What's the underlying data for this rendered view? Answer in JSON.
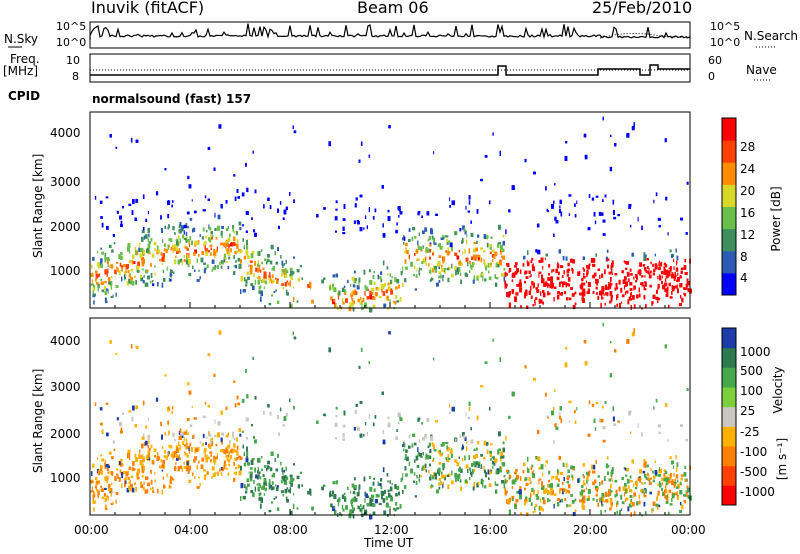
{
  "header": {
    "station": "Inuvik (fitACF)",
    "beam": "Beam 06",
    "date": "25/Feb/2010"
  },
  "small_panels": {
    "nsky_label": "N.Sky",
    "nsky_ticks": [
      "10^5",
      "10^0"
    ],
    "nsearch_label": "N.Search",
    "nsearch_ticks": [
      "10^5",
      "10^0"
    ],
    "freq_label_1": "Freq.",
    "freq_label_2": "[MHz]",
    "freq_ticks": [
      "10",
      "8"
    ],
    "nave_label": "Nave",
    "nave_ticks": [
      "60",
      "0"
    ],
    "cpid_label": "CPID",
    "cpid_text": "normalsound (fast) 157"
  },
  "chart_data": [
    {
      "type": "heatmap",
      "name": "power",
      "ylabel": "Slant Range [km]",
      "yticks": [
        "4000",
        "3000",
        "2000",
        "1000"
      ],
      "ylim": [
        180,
        4500
      ],
      "xticks": [
        "00:00",
        "04:00",
        "08:00",
        "12:00",
        "16:00",
        "20:00",
        "00:00"
      ],
      "colorbar": {
        "label": "Power [dB]",
        "ticks": [
          "28",
          "24",
          "20",
          "16",
          "12",
          "8",
          "4"
        ],
        "colors": [
          "#0000ff",
          "#2c5bb4",
          "#3e8e5e",
          "#68c04a",
          "#d8d82a",
          "#ff8c00",
          "#ff4000",
          "#ff0000"
        ]
      }
    },
    {
      "type": "heatmap",
      "name": "velocity",
      "ylabel": "Slant Range [km]",
      "yticks": [
        "4000",
        "3000",
        "2000",
        "1000"
      ],
      "ylim": [
        180,
        4500
      ],
      "xticks": [
        "00:00",
        "04:00",
        "08:00",
        "12:00",
        "16:00",
        "20:00",
        "00:00"
      ],
      "xlabel": "Time UT",
      "colorbar": {
        "label_main": "Velocity",
        "label_unit": "[m s⁻¹]",
        "ticks": [
          "1000",
          "500",
          "100",
          "25",
          "-25",
          "-100",
          "-500",
          "-1000"
        ],
        "colors": [
          "#1c3ca8",
          "#2e7a4f",
          "#46a84a",
          "#7cd03c",
          "#c8c8c0",
          "#ffb000",
          "#ff8000",
          "#ff4000",
          "#ff0000"
        ]
      }
    }
  ]
}
